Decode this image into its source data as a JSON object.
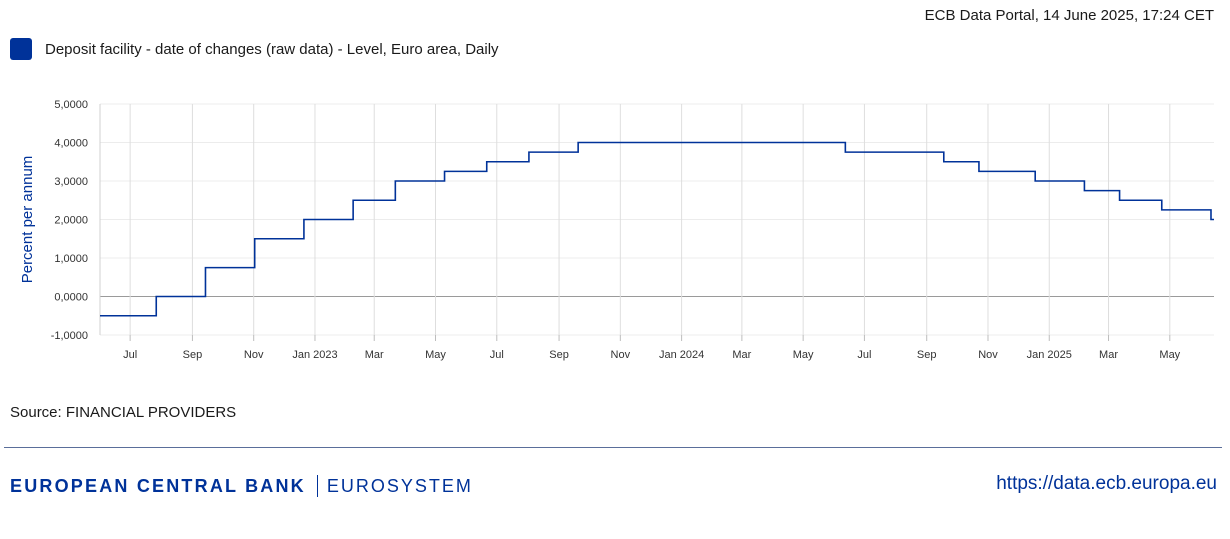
{
  "header": {
    "meta": "ECB Data Portal, 14 June 2025, 17:24 CET"
  },
  "legend": {
    "label": "Deposit facility - date of changes (raw data) - Level, Euro area, Daily",
    "color": "#003299"
  },
  "source": {
    "text": "Source: FINANCIAL PROVIDERS"
  },
  "footer": {
    "brand": "EUROPEAN CENTRAL BANK",
    "system": "EUROSYSTEM",
    "url": "https://data.ecb.europa.eu"
  },
  "chart_data": {
    "type": "line",
    "step": true,
    "ylabel": "Percent per annum",
    "xlim": [
      "2022-06-01",
      "2025-06-14"
    ],
    "ylim": [
      -1,
      5
    ],
    "grid": true,
    "line_color": "#003299",
    "y_ticks": [
      {
        "value": 5,
        "label": "5,0000"
      },
      {
        "value": 4,
        "label": "4,0000"
      },
      {
        "value": 3,
        "label": "3,0000"
      },
      {
        "value": 2,
        "label": "2,0000"
      },
      {
        "value": 1,
        "label": "1,0000"
      },
      {
        "value": 0,
        "label": "0,0000"
      },
      {
        "value": -1,
        "label": "-1,0000"
      }
    ],
    "x_ticks": [
      {
        "date": "2022-07-01",
        "label": "Jul"
      },
      {
        "date": "2022-09-01",
        "label": "Sep"
      },
      {
        "date": "2022-11-01",
        "label": "Nov"
      },
      {
        "date": "2023-01-01",
        "label": "Jan 2023"
      },
      {
        "date": "2023-03-01",
        "label": "Mar"
      },
      {
        "date": "2023-05-01",
        "label": "May"
      },
      {
        "date": "2023-07-01",
        "label": "Jul"
      },
      {
        "date": "2023-09-01",
        "label": "Sep"
      },
      {
        "date": "2023-11-01",
        "label": "Nov"
      },
      {
        "date": "2024-01-01",
        "label": "Jan 2024"
      },
      {
        "date": "2024-03-01",
        "label": "Mar"
      },
      {
        "date": "2024-05-01",
        "label": "May"
      },
      {
        "date": "2024-07-01",
        "label": "Jul"
      },
      {
        "date": "2024-09-01",
        "label": "Sep"
      },
      {
        "date": "2024-11-01",
        "label": "Nov"
      },
      {
        "date": "2025-01-01",
        "label": "Jan 2025"
      },
      {
        "date": "2025-03-01",
        "label": "Mar"
      },
      {
        "date": "2025-05-01",
        "label": "May"
      }
    ],
    "series": [
      {
        "points": [
          {
            "x": "2022-06-01",
            "y": -0.5
          },
          {
            "x": "2022-07-27",
            "y": 0.0
          },
          {
            "x": "2022-09-14",
            "y": 0.75
          },
          {
            "x": "2022-11-02",
            "y": 1.5
          },
          {
            "x": "2022-12-21",
            "y": 2.0
          },
          {
            "x": "2023-02-08",
            "y": 2.5
          },
          {
            "x": "2023-03-22",
            "y": 3.0
          },
          {
            "x": "2023-05-10",
            "y": 3.25
          },
          {
            "x": "2023-06-21",
            "y": 3.5
          },
          {
            "x": "2023-08-02",
            "y": 3.75
          },
          {
            "x": "2023-09-20",
            "y": 4.0
          },
          {
            "x": "2024-06-12",
            "y": 3.75
          },
          {
            "x": "2024-09-18",
            "y": 3.5
          },
          {
            "x": "2024-10-23",
            "y": 3.25
          },
          {
            "x": "2024-12-18",
            "y": 3.0
          },
          {
            "x": "2025-02-05",
            "y": 2.75
          },
          {
            "x": "2025-03-12",
            "y": 2.5
          },
          {
            "x": "2025-04-23",
            "y": 2.25
          },
          {
            "x": "2025-06-11",
            "y": 2.0
          },
          {
            "x": "2025-06-14",
            "y": 2.0
          }
        ]
      }
    ]
  }
}
